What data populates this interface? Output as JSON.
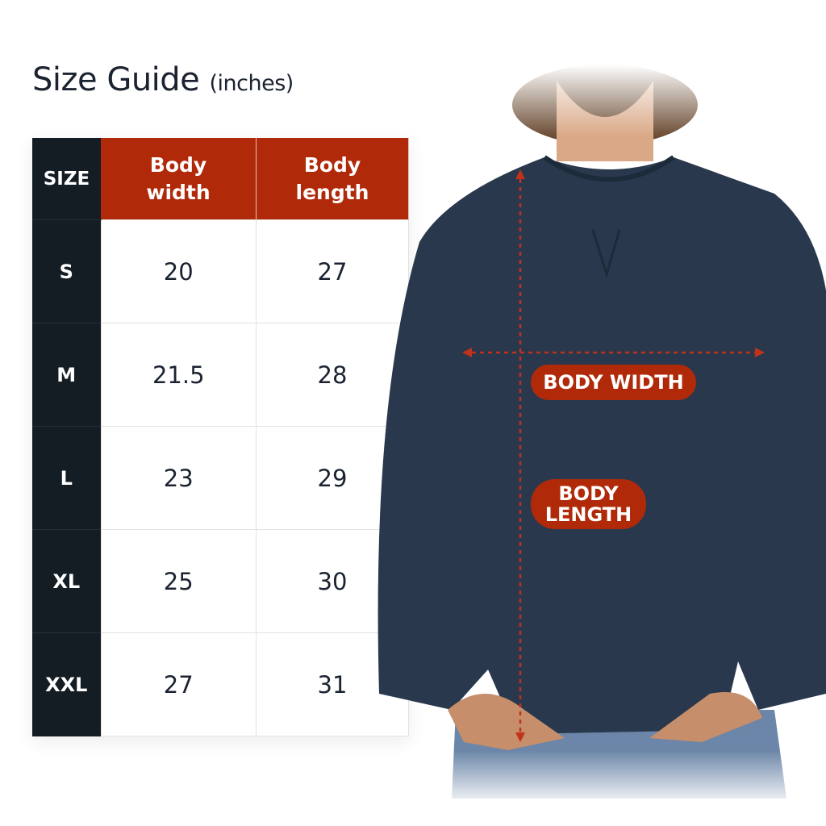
{
  "title": {
    "main": "Size Guide",
    "unit": "(inches)"
  },
  "table": {
    "headers": [
      "SIZE",
      "Body width",
      "Body length"
    ],
    "rows": [
      {
        "size": "S",
        "width": "20",
        "length": "27"
      },
      {
        "size": "M",
        "width": "21.5",
        "length": "28"
      },
      {
        "size": "L",
        "width": "23",
        "length": "29"
      },
      {
        "size": "XL",
        "width": "25",
        "length": "30"
      },
      {
        "size": "XXL",
        "width": "27",
        "length": "31"
      }
    ]
  },
  "figure": {
    "width_label": "BODY WIDTH",
    "length_label": "BODY LENGTH"
  },
  "colors": {
    "accent": "#b02a0a",
    "dark": "#141c24",
    "garment": "#29384d"
  }
}
